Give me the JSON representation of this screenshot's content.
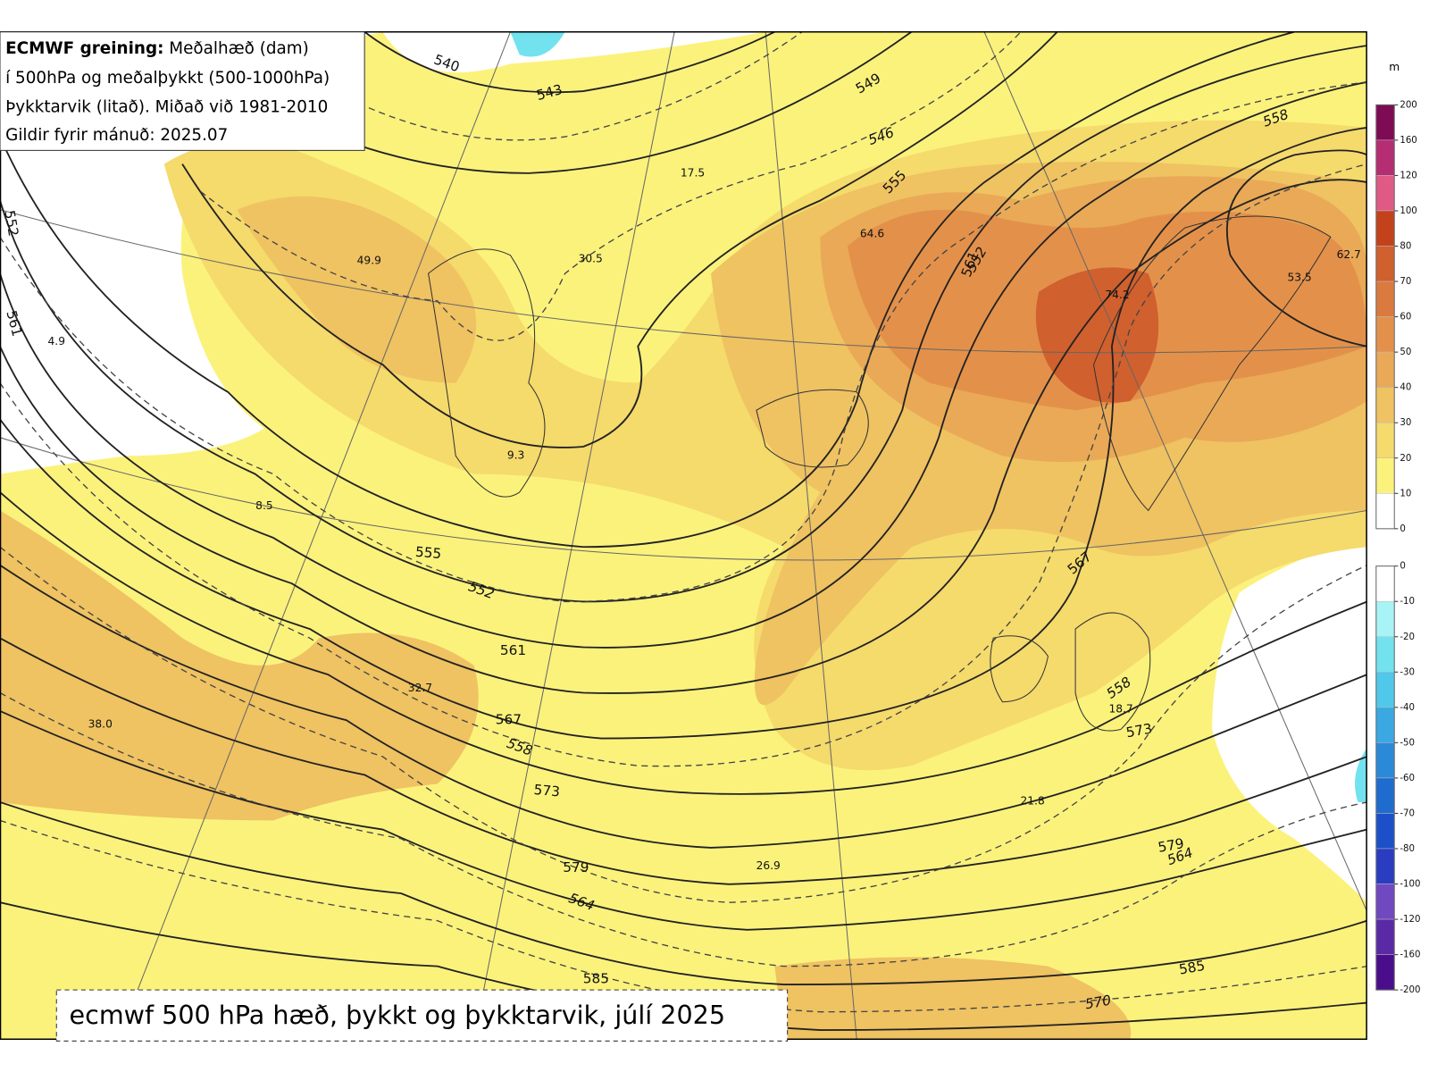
{
  "legend": {
    "title": "ECMWF greining:",
    "lines": [
      "Meðalhæð (dam)",
      "í 500hPa og meðalþykkt (500-1000hPa)",
      "Þykktarvik (litað). Miðað við 1981-2010",
      "Gildir fyrir mánuð: 2025.07"
    ]
  },
  "caption": "ecmwf 500 hPa hæð, þykkt og þykktarvik, júlí 2025",
  "colorbar": {
    "unit": "m",
    "positive": {
      "ticks": [
        200,
        160,
        120,
        100,
        80,
        70,
        60,
        50,
        40,
        30,
        20,
        10,
        0
      ],
      "colors": [
        "#7d0c55",
        "#b52d72",
        "#df5a84",
        "#c3421c",
        "#d0602e",
        "#db7a3e",
        "#e3914a",
        "#e9a956",
        "#efc262",
        "#f5da6c",
        "#fbf27c",
        "#ffffff"
      ]
    },
    "negative": {
      "ticks": [
        0,
        -10,
        -20,
        -30,
        -40,
        -50,
        -60,
        -70,
        -80,
        -100,
        -120,
        -160,
        -200
      ],
      "colors": [
        "#ffffff",
        "#a8f3f5",
        "#72e2ef",
        "#4fc8ea",
        "#3aa9e2",
        "#2a8ad8",
        "#1f6ccf",
        "#1c50c8",
        "#2a3cc0",
        "#7048c0",
        "#5a2aa6",
        "#4a0e8c"
      ]
    }
  },
  "height_labels": [
    540,
    543,
    549,
    555,
    561,
    567,
    555,
    561,
    567,
    573,
    579,
    585,
    573,
    579,
    585,
    552,
    561
  ],
  "thickness_labels": [
    546,
    552,
    558,
    552,
    558,
    564,
    564,
    570,
    558
  ],
  "anomaly_labels": [
    49.9,
    4.9,
    9.3,
    17.5,
    30.5,
    64.6,
    74.2,
    62.7,
    53.5,
    8.5,
    32.7,
    {
      "value": 38,
      "label": "38.0"
    },
    18.7,
    21.8,
    26.9
  ]
}
